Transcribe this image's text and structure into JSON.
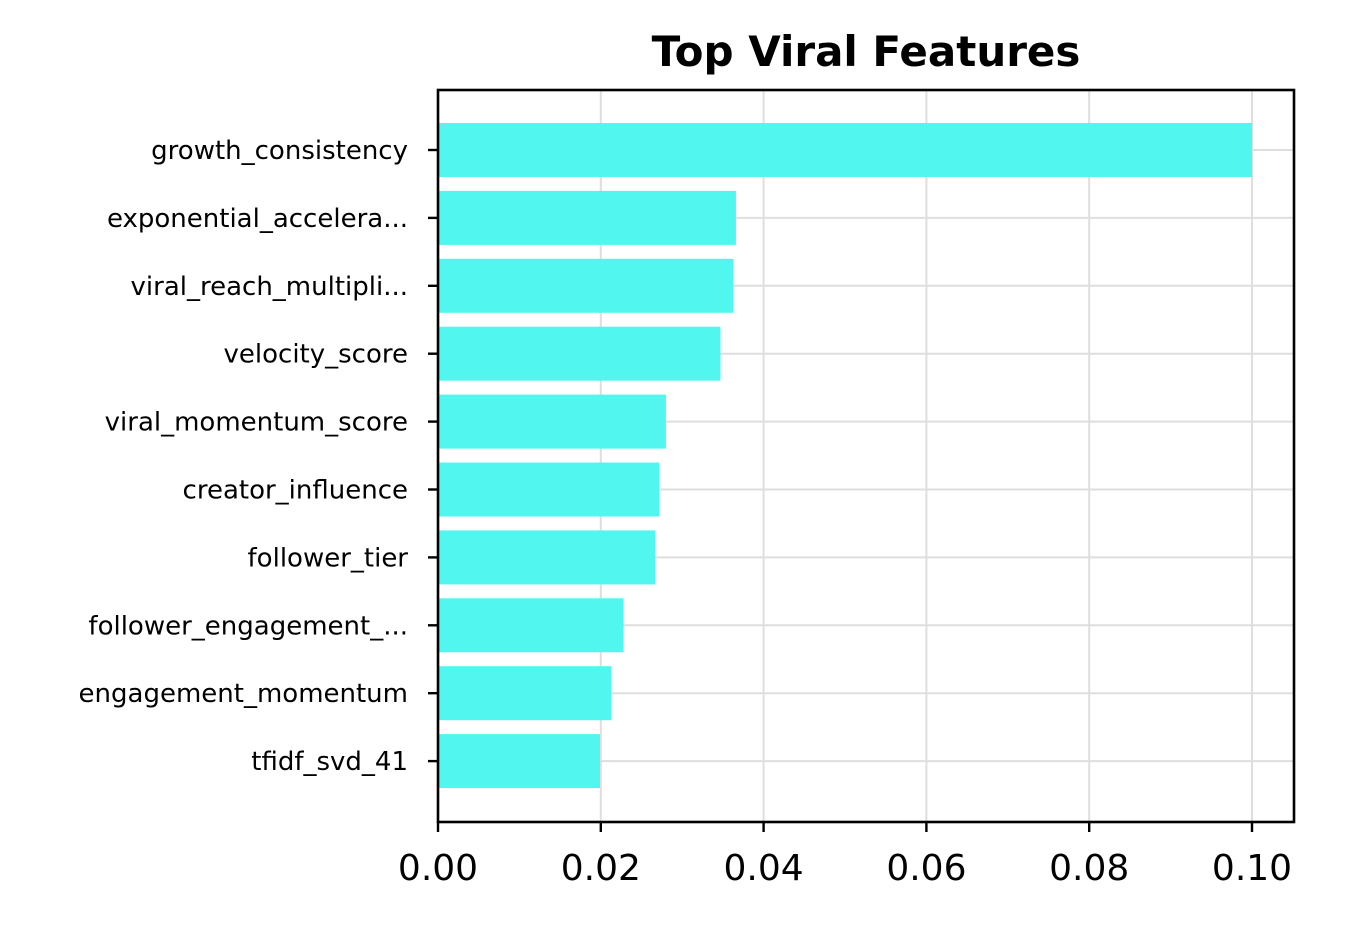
{
  "chart_data": {
    "type": "bar",
    "orientation": "horizontal",
    "title": "Top Viral Features",
    "xlabel": "",
    "ylabel": "",
    "categories": [
      "growth_consistency",
      "exponential_accelera...",
      "viral_reach_multipli...",
      "velocity_score",
      "viral_momentum_score",
      "creator_influence",
      "follower_tier",
      "follower_engagement_...",
      "engagement_momentum",
      "tfidf_svd_41"
    ],
    "values": [
      0.1,
      0.0366,
      0.0363,
      0.0347,
      0.028,
      0.0272,
      0.0267,
      0.0228,
      0.0213,
      0.0199
    ],
    "xlim": [
      0.0,
      0.105
    ],
    "xticks": [
      "0.00",
      "0.02",
      "0.04",
      "0.06",
      "0.08",
      "0.10"
    ],
    "grid": true,
    "bar_color": "#51f7ef",
    "grid_color": "#dedede"
  }
}
